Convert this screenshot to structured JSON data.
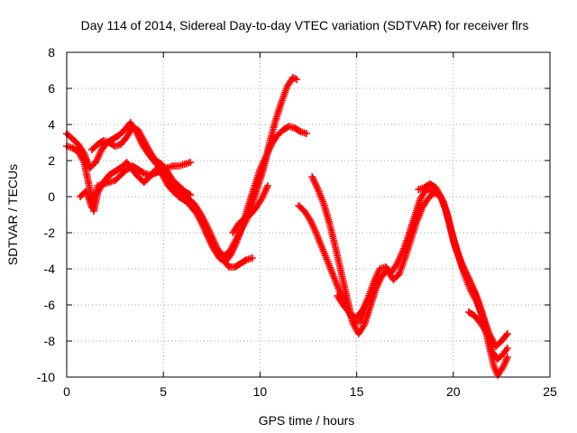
{
  "chart_data": {
    "type": "scatter",
    "title": "Day 114 of 2014, Sidereal Day-to-day VTEC variation (SDTVAR) for receiver flrs",
    "xlabel": "GPS time / hours",
    "ylabel": "SDTVAR / TECUs",
    "xlim": [
      0,
      25
    ],
    "ylim": [
      -10,
      8
    ],
    "xticks": [
      0,
      5,
      10,
      15,
      20,
      25
    ],
    "yticks": [
      -10,
      -8,
      -6,
      -4,
      -2,
      0,
      2,
      4,
      6,
      8
    ],
    "grid": true,
    "legend": "none",
    "marker": "+",
    "color": "#ff0000",
    "series": [
      {
        "values": [
          [
            0.0,
            3.5
          ],
          [
            0.3,
            3.2
          ],
          [
            0.6,
            2.9
          ],
          [
            0.9,
            2.4
          ],
          [
            1.2,
            1.6
          ],
          [
            1.5,
            1.9
          ],
          [
            1.8,
            2.6
          ],
          [
            2.1,
            3.0
          ],
          [
            2.4,
            3.2
          ],
          [
            2.7,
            3.4
          ],
          [
            3.0,
            3.7
          ],
          [
            3.3,
            4.1
          ],
          [
            3.6,
            3.6
          ],
          [
            3.9,
            2.9
          ],
          [
            4.2,
            2.4
          ],
          [
            4.5,
            2.0
          ],
          [
            4.8,
            1.6
          ],
          [
            5.1,
            1.2
          ],
          [
            5.4,
            0.8
          ],
          [
            5.7,
            0.4
          ],
          [
            6.0,
            0.1
          ],
          [
            6.3,
            -0.1
          ],
          [
            6.6,
            -0.4
          ],
          [
            6.9,
            -0.9
          ],
          [
            7.2,
            -1.5
          ],
          [
            7.5,
            -2.2
          ],
          [
            7.8,
            -2.9
          ],
          [
            8.1,
            -3.3
          ],
          [
            8.4,
            -3.1
          ],
          [
            8.7,
            -2.5
          ],
          [
            9.0,
            -1.9
          ],
          [
            9.3,
            -1.3
          ],
          [
            9.6,
            -0.4
          ],
          [
            9.9,
            0.6
          ],
          [
            10.2,
            1.6
          ],
          [
            10.5,
            3.0
          ],
          [
            10.8,
            4.2
          ],
          [
            11.1,
            5.2
          ],
          [
            11.4,
            6.1
          ],
          [
            11.7,
            6.6
          ],
          [
            11.9,
            6.5
          ]
        ]
      },
      {
        "values": [
          [
            0.0,
            2.8
          ],
          [
            0.3,
            2.7
          ],
          [
            0.6,
            2.5
          ],
          [
            0.9,
            1.9
          ],
          [
            1.2,
            0.4
          ],
          [
            1.4,
            -0.8
          ],
          [
            1.6,
            0.2
          ],
          [
            1.9,
            0.8
          ],
          [
            2.2,
            1.2
          ],
          [
            2.5,
            1.4
          ],
          [
            2.8,
            1.6
          ],
          [
            3.1,
            1.9
          ],
          [
            3.4,
            1.5
          ],
          [
            3.7,
            1.1
          ],
          [
            4.0,
            0.8
          ],
          [
            4.3,
            1.1
          ],
          [
            4.6,
            1.5
          ],
          [
            4.9,
            1.3
          ],
          [
            5.2,
            0.7
          ],
          [
            5.5,
            0.3
          ],
          [
            5.8,
            0.0
          ],
          [
            6.1,
            -0.2
          ],
          [
            6.4,
            -0.5
          ],
          [
            6.7,
            -0.9
          ],
          [
            7.0,
            -1.5
          ],
          [
            7.3,
            -2.2
          ],
          [
            7.6,
            -2.9
          ],
          [
            7.9,
            -3.4
          ],
          [
            8.2,
            -3.6
          ],
          [
            8.5,
            -3.2
          ],
          [
            8.8,
            -2.5
          ],
          [
            9.1,
            -1.6
          ],
          [
            9.4,
            -0.5
          ],
          [
            9.7,
            0.5
          ],
          [
            10.0,
            1.5
          ],
          [
            10.3,
            2.2
          ],
          [
            10.6,
            2.9
          ],
          [
            10.9,
            3.4
          ],
          [
            11.2,
            3.7
          ],
          [
            11.5,
            3.9
          ],
          [
            11.8,
            3.8
          ],
          [
            12.1,
            3.6
          ],
          [
            12.4,
            3.5
          ]
        ]
      },
      {
        "values": [
          [
            0.7,
            0.0
          ],
          [
            1.0,
            0.3
          ],
          [
            1.3,
            -0.6
          ],
          [
            1.6,
            0.6
          ],
          [
            1.9,
            0.7
          ],
          [
            2.2,
            0.8
          ],
          [
            2.5,
            0.9
          ],
          [
            2.8,
            1.2
          ],
          [
            3.1,
            1.5
          ],
          [
            3.4,
            1.7
          ],
          [
            3.7,
            1.5
          ],
          [
            4.0,
            1.3
          ],
          [
            4.3,
            1.2
          ],
          [
            4.6,
            1.3
          ],
          [
            4.9,
            1.5
          ],
          [
            5.2,
            1.6
          ],
          [
            5.5,
            1.7
          ],
          [
            5.8,
            1.7
          ],
          [
            6.1,
            1.8
          ],
          [
            6.4,
            1.9
          ]
        ]
      },
      {
        "values": [
          [
            1.3,
            2.6
          ],
          [
            1.6,
            2.9
          ],
          [
            1.9,
            3.1
          ],
          [
            2.2,
            3.0
          ],
          [
            2.5,
            2.8
          ],
          [
            2.8,
            2.9
          ],
          [
            3.1,
            3.3
          ],
          [
            3.4,
            3.8
          ],
          [
            3.7,
            3.7
          ],
          [
            4.0,
            3.1
          ],
          [
            4.3,
            2.5
          ],
          [
            4.6,
            2.0
          ],
          [
            4.9,
            1.8
          ],
          [
            5.2,
            1.4
          ],
          [
            5.5,
            0.9
          ],
          [
            5.8,
            0.6
          ],
          [
            6.1,
            0.3
          ],
          [
            6.4,
            0.1
          ]
        ]
      },
      {
        "values": [
          [
            7.2,
            -2.0
          ],
          [
            7.5,
            -2.6
          ],
          [
            7.8,
            -3.1
          ],
          [
            8.1,
            -3.5
          ],
          [
            8.4,
            -3.9
          ],
          [
            8.7,
            -3.9
          ],
          [
            9.0,
            -3.7
          ],
          [
            9.3,
            -3.5
          ],
          [
            9.6,
            -3.4
          ]
        ]
      },
      {
        "values": [
          [
            8.6,
            -2.0
          ],
          [
            8.9,
            -1.5
          ],
          [
            9.2,
            -1.2
          ],
          [
            9.5,
            -1.0
          ],
          [
            9.8,
            -0.6
          ],
          [
            10.1,
            -0.1
          ],
          [
            10.4,
            0.6
          ]
        ]
      },
      {
        "values": [
          [
            12.0,
            -0.5
          ],
          [
            12.3,
            -0.8
          ],
          [
            12.6,
            -1.3
          ],
          [
            12.9,
            -2.0
          ],
          [
            13.2,
            -2.8
          ],
          [
            13.5,
            -3.6
          ],
          [
            13.8,
            -4.4
          ],
          [
            14.1,
            -5.2
          ],
          [
            14.4,
            -6.0
          ],
          [
            14.7,
            -6.6
          ],
          [
            15.0,
            -6.7
          ],
          [
            15.3,
            -6.3
          ],
          [
            15.6,
            -5.6
          ],
          [
            15.9,
            -4.7
          ],
          [
            16.2,
            -4.0
          ],
          [
            16.5,
            -3.9
          ],
          [
            16.8,
            -4.2
          ],
          [
            17.1,
            -3.7
          ],
          [
            17.4,
            -3.0
          ],
          [
            17.7,
            -2.1
          ],
          [
            18.0,
            -1.1
          ],
          [
            18.3,
            -0.1
          ],
          [
            18.6,
            0.4
          ],
          [
            18.9,
            0.3
          ],
          [
            19.2,
            0.2
          ],
          [
            19.5,
            -0.3
          ],
          [
            19.8,
            -1.5
          ],
          [
            20.1,
            -2.8
          ],
          [
            20.4,
            -3.6
          ],
          [
            20.7,
            -4.3
          ],
          [
            21.0,
            -5.0
          ],
          [
            21.3,
            -5.8
          ],
          [
            21.6,
            -6.8
          ],
          [
            21.9,
            -7.7
          ],
          [
            22.2,
            -8.3
          ],
          [
            22.5,
            -8.0
          ],
          [
            22.8,
            -7.6
          ]
        ]
      },
      {
        "values": [
          [
            12.7,
            1.1
          ],
          [
            13.0,
            0.4
          ],
          [
            13.3,
            -0.4
          ],
          [
            13.6,
            -1.5
          ],
          [
            13.9,
            -2.8
          ],
          [
            14.2,
            -4.2
          ],
          [
            14.5,
            -5.6
          ],
          [
            14.8,
            -7.0
          ],
          [
            15.1,
            -7.6
          ],
          [
            15.4,
            -7.1
          ],
          [
            15.7,
            -6.1
          ],
          [
            16.0,
            -5.1
          ],
          [
            16.3,
            -4.4
          ],
          [
            16.6,
            -4.1
          ],
          [
            16.9,
            -4.6
          ],
          [
            17.2,
            -4.3
          ],
          [
            17.5,
            -3.4
          ],
          [
            17.8,
            -2.4
          ],
          [
            18.1,
            -1.4
          ],
          [
            18.4,
            -0.6
          ],
          [
            18.7,
            -0.1
          ],
          [
            19.0,
            0.2
          ],
          [
            19.3,
            0.1
          ],
          [
            19.6,
            -0.7
          ],
          [
            19.9,
            -1.9
          ],
          [
            20.2,
            -3.0
          ],
          [
            20.5,
            -4.0
          ],
          [
            20.8,
            -4.6
          ],
          [
            21.1,
            -5.3
          ],
          [
            21.4,
            -6.3
          ],
          [
            21.7,
            -7.3
          ],
          [
            22.0,
            -8.6
          ],
          [
            22.3,
            -9.0
          ],
          [
            22.6,
            -8.7
          ],
          [
            22.8,
            -8.4
          ]
        ]
      },
      {
        "values": [
          [
            14.0,
            -5.5
          ],
          [
            14.3,
            -6.0
          ],
          [
            14.6,
            -6.4
          ],
          [
            14.9,
            -7.0
          ],
          [
            15.2,
            -6.9
          ],
          [
            15.5,
            -6.0
          ],
          [
            15.8,
            -5.3
          ],
          [
            16.1,
            -4.5
          ]
        ]
      },
      {
        "values": [
          [
            18.2,
            0.4
          ],
          [
            18.5,
            0.5
          ],
          [
            18.8,
            0.7
          ],
          [
            19.1,
            0.5
          ],
          [
            19.4,
            -0.1
          ],
          [
            19.7,
            -1.0
          ],
          [
            20.0,
            -2.4
          ],
          [
            20.3,
            -3.4
          ],
          [
            20.6,
            -4.4
          ],
          [
            20.9,
            -5.2
          ],
          [
            21.2,
            -5.8
          ],
          [
            21.5,
            -6.6
          ],
          [
            21.8,
            -8.0
          ],
          [
            22.1,
            -9.4
          ],
          [
            22.3,
            -9.9
          ],
          [
            22.6,
            -9.4
          ],
          [
            22.8,
            -8.9
          ]
        ]
      },
      {
        "values": [
          [
            20.8,
            -6.4
          ],
          [
            21.1,
            -6.6
          ],
          [
            21.4,
            -7.0
          ],
          [
            21.7,
            -7.5
          ],
          [
            22.0,
            -7.9
          ]
        ]
      }
    ]
  }
}
